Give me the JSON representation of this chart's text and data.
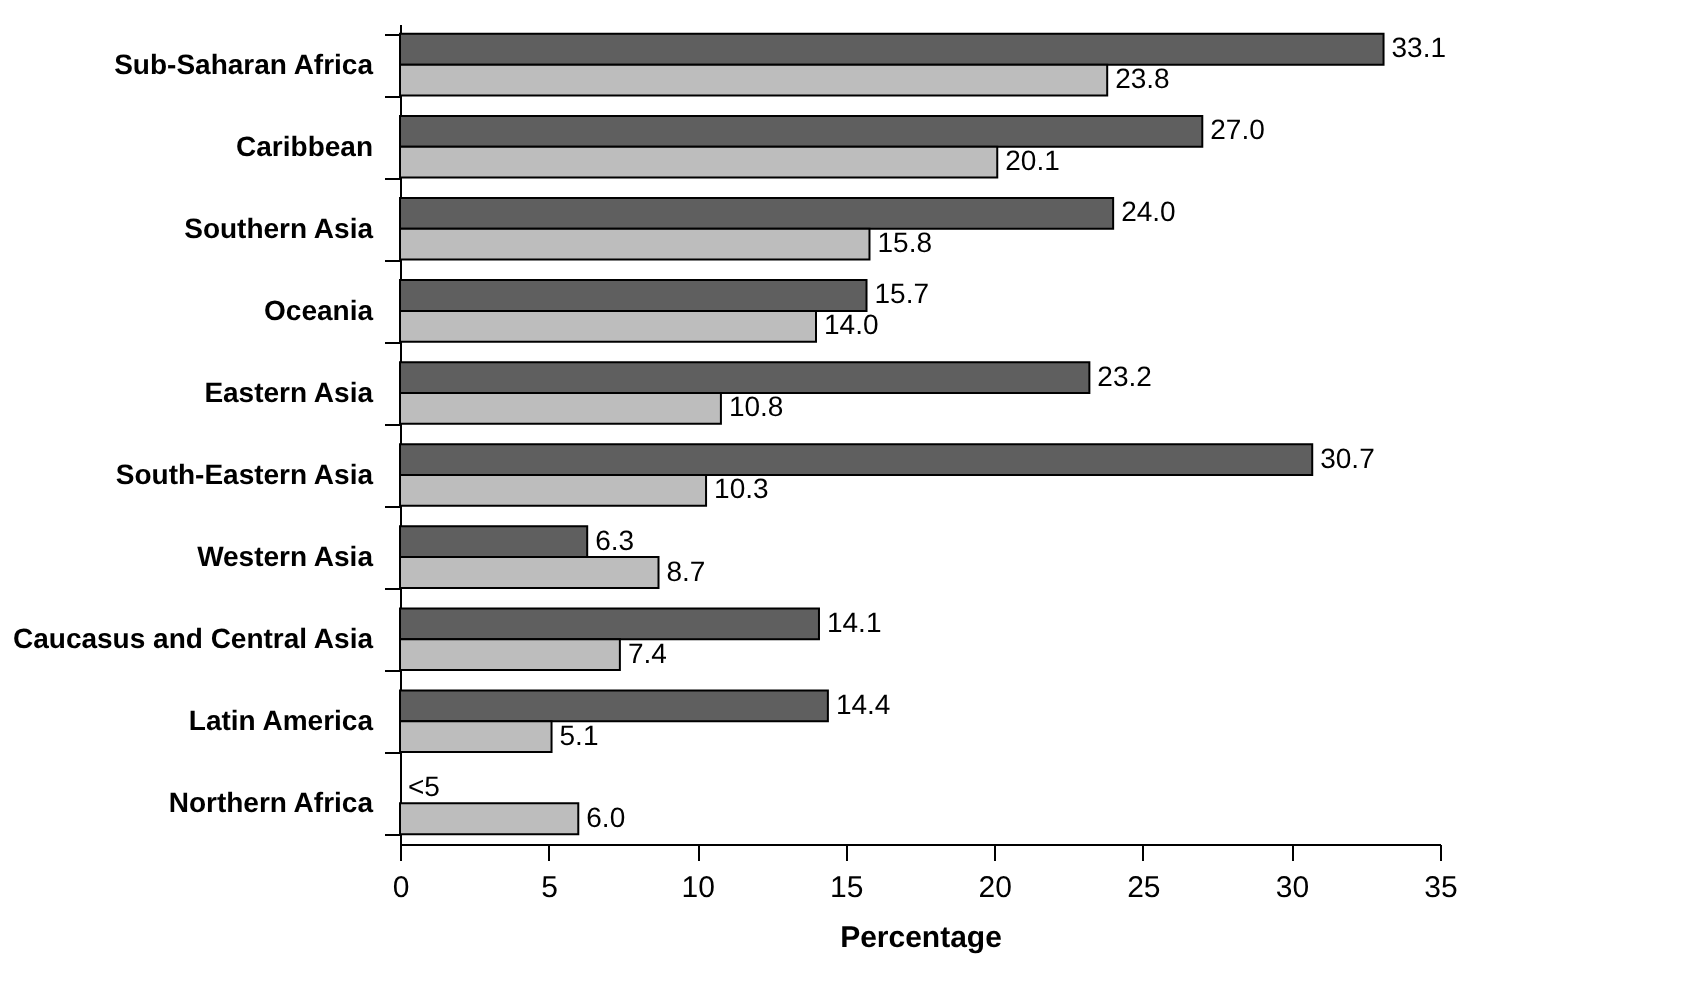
{
  "chart_data": {
    "type": "bar",
    "orientation": "horizontal",
    "xlabel": "Percentage",
    "categories": [
      "Sub-Saharan Africa",
      "Caribbean",
      "Southern Asia",
      "Oceania",
      "Eastern Asia",
      "South-Eastern Asia",
      "Western Asia",
      "Caucasus and Central Asia",
      "Latin America",
      "Northern Africa"
    ],
    "series": [
      {
        "color": "#5f5f5f",
        "values": [
          33.1,
          27.0,
          24.0,
          15.7,
          23.2,
          30.7,
          6.3,
          14.1,
          14.4,
          null
        ],
        "value_labels": [
          "33.1",
          "27.0",
          "24.0",
          "15.7",
          "23.2",
          "30.7",
          "6.3",
          "14.1",
          "14.4",
          "<5"
        ]
      },
      {
        "color": "#bdbdbd",
        "values": [
          23.8,
          20.1,
          15.8,
          14.0,
          10.8,
          10.3,
          8.7,
          7.4,
          5.1,
          6.0
        ],
        "value_labels": [
          "23.8",
          "20.1",
          "15.8",
          "14.0",
          "10.8",
          "10.3",
          "8.7",
          "7.4",
          "5.1",
          "6.0"
        ]
      }
    ],
    "xlim": [
      0,
      35
    ],
    "xticks": [
      0,
      5,
      10,
      15,
      20,
      25,
      30,
      35
    ],
    "grid": false,
    "legend": false
  }
}
